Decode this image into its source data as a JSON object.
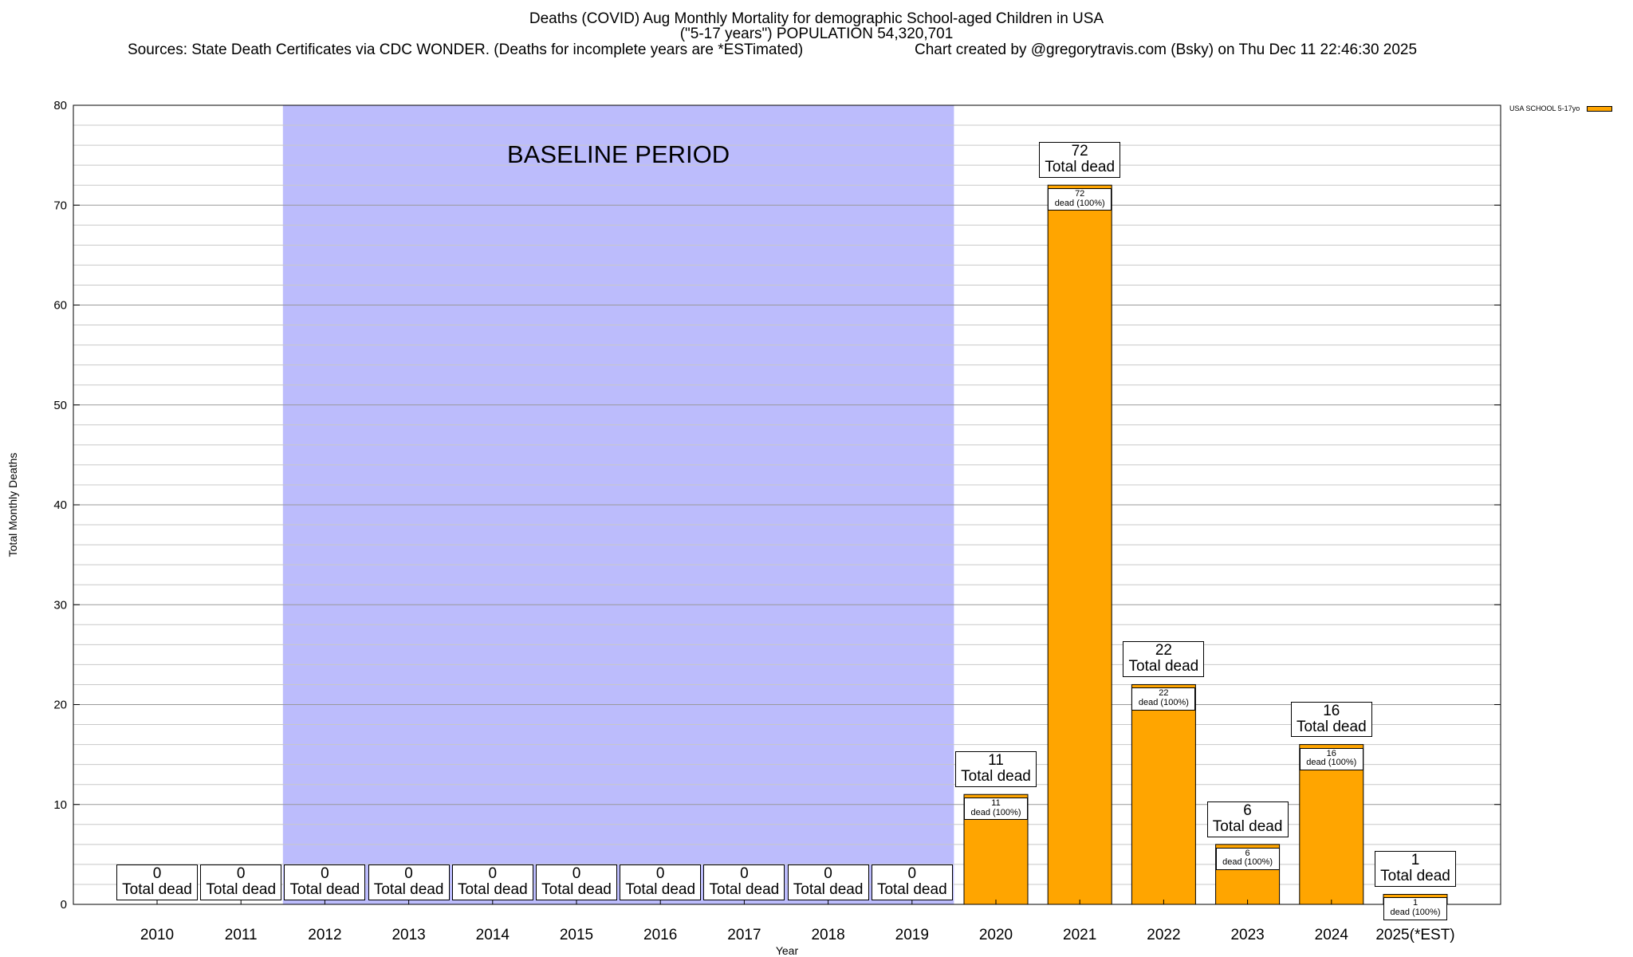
{
  "chart_data": {
    "type": "bar",
    "title_lines": [
      "Deaths (COVID) Aug Monthly Mortality for demographic School-aged Children in USA",
      "(\"5-17 years\") POPULATION 54,320,701"
    ],
    "sources_text": "Sources: State Death Certificates via CDC WONDER. (Deaths for incomplete years are *ESTimated)",
    "credit_text": "Chart created by @gregorytravis.com (Bsky) on Thu Dec 11 22:46:30 2025",
    "xlabel": "Year",
    "ylabel": "Total Monthly Deaths",
    "ylim": [
      0,
      80
    ],
    "yticks": [
      0,
      10,
      20,
      30,
      40,
      50,
      60,
      70,
      80
    ],
    "categories": [
      "2010",
      "2011",
      "2012",
      "2013",
      "2014",
      "2015",
      "2016",
      "2017",
      "2018",
      "2019",
      "2020",
      "2021",
      "2022",
      "2023",
      "2024",
      "2025(*EST)"
    ],
    "series": [
      {
        "name": "USA SCHOOL 5-17yo",
        "color": "#FFA500",
        "values": [
          0,
          0,
          0,
          0,
          0,
          0,
          0,
          0,
          0,
          0,
          11,
          72,
          22,
          6,
          16,
          1
        ]
      }
    ],
    "total_label": "Total dead",
    "inner_label_suffix": "dead (100%)",
    "baseline": {
      "label": "BASELINE PERIOD",
      "start": "2012",
      "end": "2019",
      "color": "#BCBCFC"
    },
    "legend": {
      "position": "top-right"
    },
    "grid": true
  }
}
